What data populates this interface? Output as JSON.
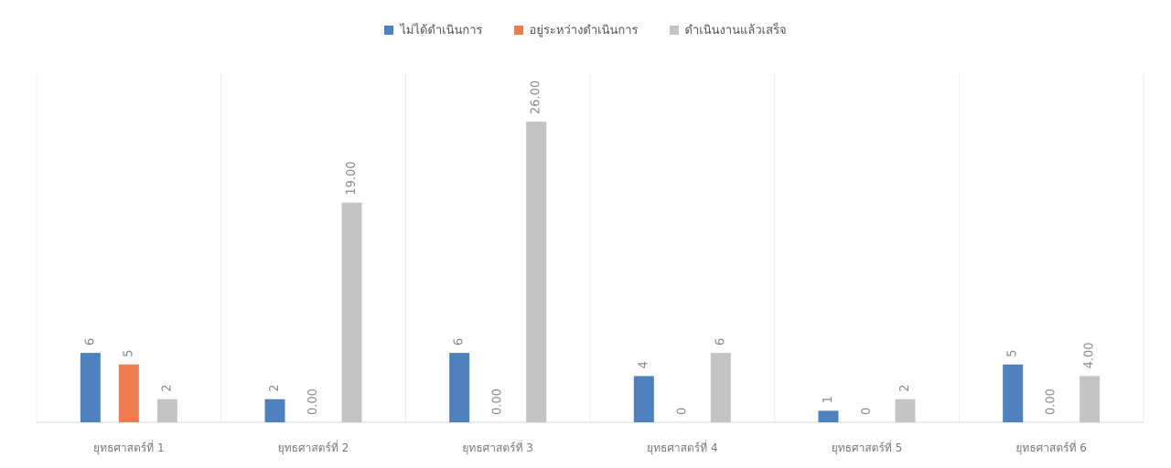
{
  "chart_data": {
    "type": "bar",
    "title": "",
    "xlabel": "",
    "ylabel": "",
    "ylim": [
      0,
      30
    ],
    "grid": "vertical separators",
    "legend_position": "top-center",
    "categories": [
      "ยุทธศาสตร์ที่ 1",
      "ยุทธศาสตร์ที่ 2",
      "ยุทธศาสตร์ที่ 3",
      "ยุทธศาสตร์ที่ 4",
      "ยุทธศาสตร์ที่ 5",
      "ยุทธศาสตร์ที่ 6"
    ],
    "series": [
      {
        "name": "ไม่ได้ดำเนินการ",
        "color": "#4e81bd",
        "values": [
          6,
          2,
          6,
          4,
          1,
          5
        ],
        "labels": [
          "6",
          "2",
          "6",
          "4",
          "1",
          "5"
        ]
      },
      {
        "name": "อยู่ระหว่างดำเนินการ",
        "color": "#ed7d4f",
        "values": [
          5,
          0,
          0,
          0,
          0,
          0
        ],
        "labels": [
          "5",
          "0.00",
          "0.00",
          "0",
          "0",
          "0.00"
        ]
      },
      {
        "name": "ดำเนินงานแล้วเสร็จ",
        "color": "#c4c4c4",
        "values": [
          2,
          19,
          26,
          6,
          2,
          4
        ],
        "labels": [
          "2",
          "19.00",
          "26.00",
          "6",
          "2",
          "4.00"
        ]
      }
    ]
  }
}
